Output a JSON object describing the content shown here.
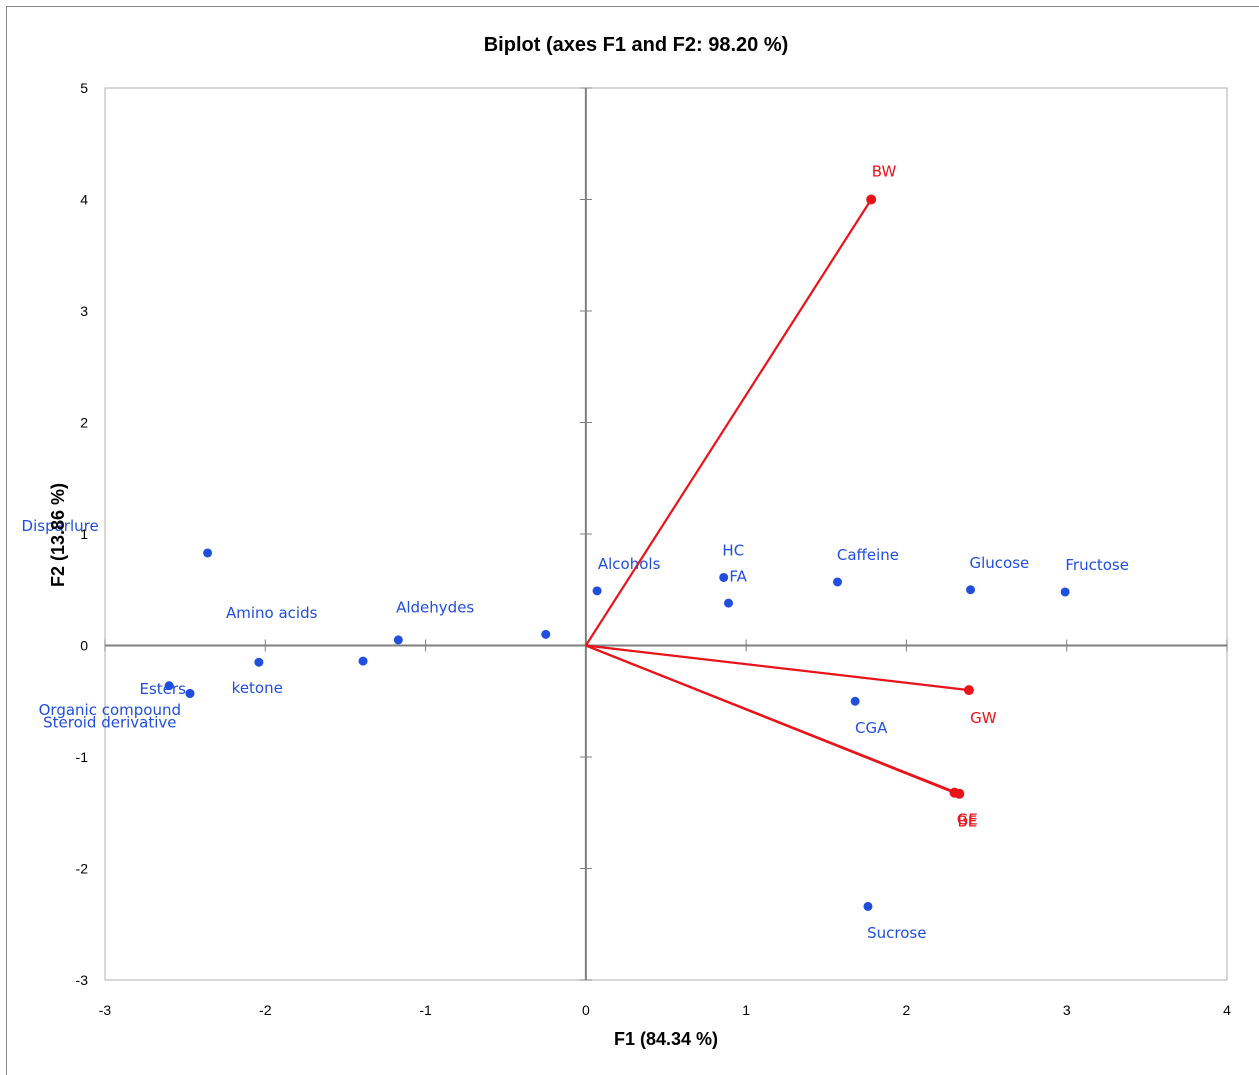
{
  "chart_data": {
    "type": "scatter",
    "title": "Biplot (axes F1 and F2: 98.20 %)",
    "xlabel": "F1 (84.34 %)",
    "ylabel": "F2 (13.86 %)",
    "xlim": [
      -3,
      4
    ],
    "ylim": [
      -3,
      5
    ],
    "x_ticks": [
      -3,
      -2,
      -1,
      0,
      1,
      2,
      3,
      4
    ],
    "y_ticks": [
      -3,
      -2,
      -1,
      0,
      1,
      2,
      3,
      4,
      5
    ],
    "grid": false,
    "legend": "none",
    "observation_color": "#1f4fdc",
    "variable_color": "#e8141a",
    "observations": [
      {
        "label": "Disparlure",
        "x": -2.36,
        "y": 0.83,
        "label_dx": -0.92,
        "label_dy": 0.24
      },
      {
        "label": "Amino acids",
        "x": -2.04,
        "y": -0.15,
        "label_dx": 0.08,
        "label_dy": 0.44
      },
      {
        "label": "Aldehydes",
        "x": -1.17,
        "y": 0.05,
        "label_dx": 0.23,
        "label_dy": 0.29
      },
      {
        "label": "ketone",
        "x": -1.39,
        "y": -0.14,
        "label_dx": -0.66,
        "label_dy": -0.24
      },
      {
        "label": "",
        "x": -0.25,
        "y": 0.1,
        "label_dx": 0,
        "label_dy": 0
      },
      {
        "label": "Esters",
        "x": -2.6,
        "y": -0.36,
        "label_dx": -0.04,
        "label_dy": -0.03
      },
      {
        "label": "Organic compound",
        "x": -2.47,
        "y": -0.43,
        "label_dx": -0.5,
        "label_dy": -0.15
      },
      {
        "label": "Steroid derivative",
        "x": -2.47,
        "y": -0.43,
        "label_dx": -0.5,
        "label_dy": -0.26
      },
      {
        "label": "Alcohols",
        "x": 0.07,
        "y": 0.49,
        "label_dx": 0.2,
        "label_dy": 0.24
      },
      {
        "label": "HC",
        "x": 0.86,
        "y": 0.61,
        "label_dx": 0.06,
        "label_dy": 0.24
      },
      {
        "label": "FA",
        "x": 0.89,
        "y": 0.38,
        "label_dx": 0.06,
        "label_dy": 0.24
      },
      {
        "label": "Caffeine",
        "x": 1.57,
        "y": 0.57,
        "label_dx": 0.19,
        "label_dy": 0.24
      },
      {
        "label": "Glucose",
        "x": 2.4,
        "y": 0.5,
        "label_dx": 0.18,
        "label_dy": 0.24
      },
      {
        "label": "Fructose",
        "x": 2.99,
        "y": 0.48,
        "label_dx": 0.2,
        "label_dy": 0.24
      },
      {
        "label": "CGA",
        "x": 1.68,
        "y": -0.5,
        "label_dx": 0.1,
        "label_dy": -0.24
      },
      {
        "label": "Sucrose",
        "x": 1.76,
        "y": -2.34,
        "label_dx": 0.18,
        "label_dy": -0.24
      }
    ],
    "variables": [
      {
        "label": "BW",
        "x": 1.78,
        "y": 4.0,
        "label_dx": 0.08,
        "label_dy": 0.25
      },
      {
        "label": "GW",
        "x": 2.39,
        "y": -0.4,
        "label_dx": 0.09,
        "label_dy": -0.25
      },
      {
        "label": "GE",
        "x": 2.3,
        "y": -1.32,
        "label_dx": 0.08,
        "label_dy": -0.24
      },
      {
        "label": "BE",
        "x": 2.33,
        "y": -1.33,
        "label_dx": 0.05,
        "label_dy": -0.25
      }
    ]
  }
}
